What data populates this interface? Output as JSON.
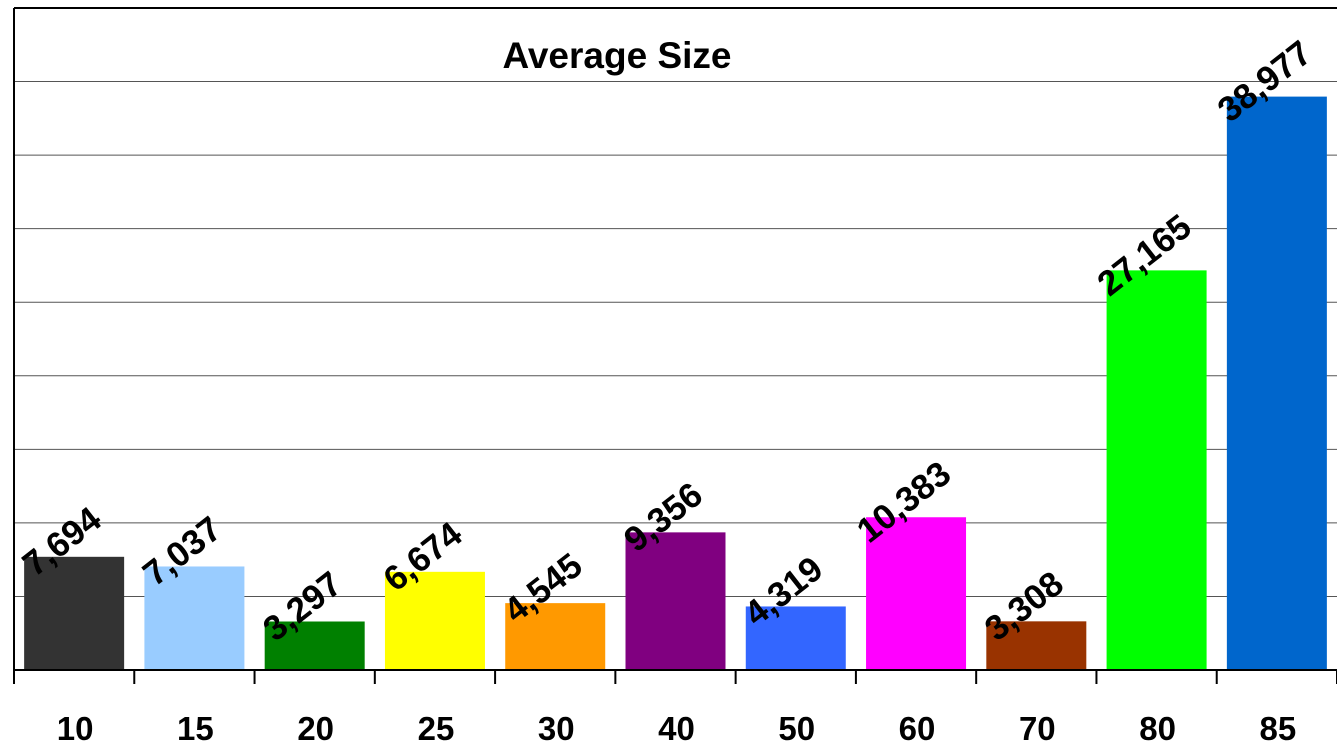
{
  "chart_data": {
    "type": "bar",
    "title": "Average Size",
    "xlabel": "",
    "ylabel": "",
    "categories": [
      "10",
      "15",
      "20",
      "25",
      "30",
      "40",
      "50",
      "60",
      "70",
      "80",
      "85"
    ],
    "values": [
      7694,
      7037,
      3297,
      6674,
      4545,
      9356,
      4319,
      10383,
      3308,
      27165,
      38977
    ],
    "value_labels": [
      "7,694",
      "7,037",
      "3,297",
      "6,674",
      "4,545",
      "9,356",
      "4,319",
      "10,383",
      "3,308",
      "27,165",
      "38,977"
    ],
    "colors": [
      "#333333",
      "#99ccff",
      "#008000",
      "#ffff00",
      "#ff9900",
      "#800080",
      "#3366ff",
      "#ff00ff",
      "#993300",
      "#00ff00",
      "#0066cc"
    ],
    "ylim": [
      0,
      45000
    ],
    "gridlines": [
      5000,
      10000,
      15000,
      20000,
      25000,
      30000,
      35000,
      40000
    ],
    "grid": true,
    "legend": "none"
  }
}
